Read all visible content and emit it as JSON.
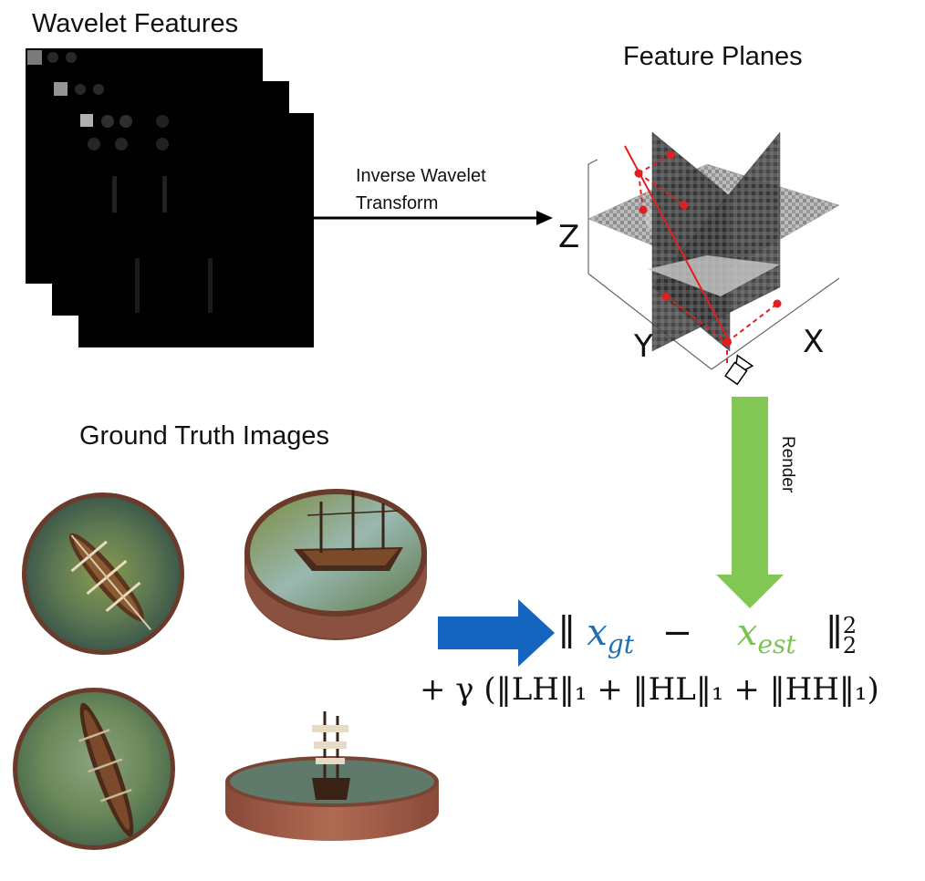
{
  "titles": {
    "wavelet_features": "Wavelet Features",
    "feature_planes": "Feature Planes",
    "ground_truth": "Ground Truth Images"
  },
  "arrow_label": {
    "line1": "Inverse Wavelet",
    "line2": "Transform"
  },
  "render_label": "Render",
  "axes": {
    "z": "Z",
    "y": "Y",
    "x": "X"
  },
  "loss": {
    "norm_open": "∥",
    "x_gt": "x",
    "x_gt_sub": "gt",
    "minus": "−",
    "x_est": "x",
    "x_est_sub": "est",
    "norm_close": "∥",
    "sup": "2",
    "sub": "2",
    "reg_line": "+ γ (‖LH‖₁ + ‖HL‖₁ + ‖HH‖₁)"
  },
  "colors": {
    "gt_blue": "#1f6fb5",
    "est_green": "#7dc34f",
    "render_arrow_green": "#82c653",
    "blue_arrow": "#1565c0",
    "ray_red": "#e02020"
  },
  "icons": {
    "camera": "camera-icon"
  }
}
